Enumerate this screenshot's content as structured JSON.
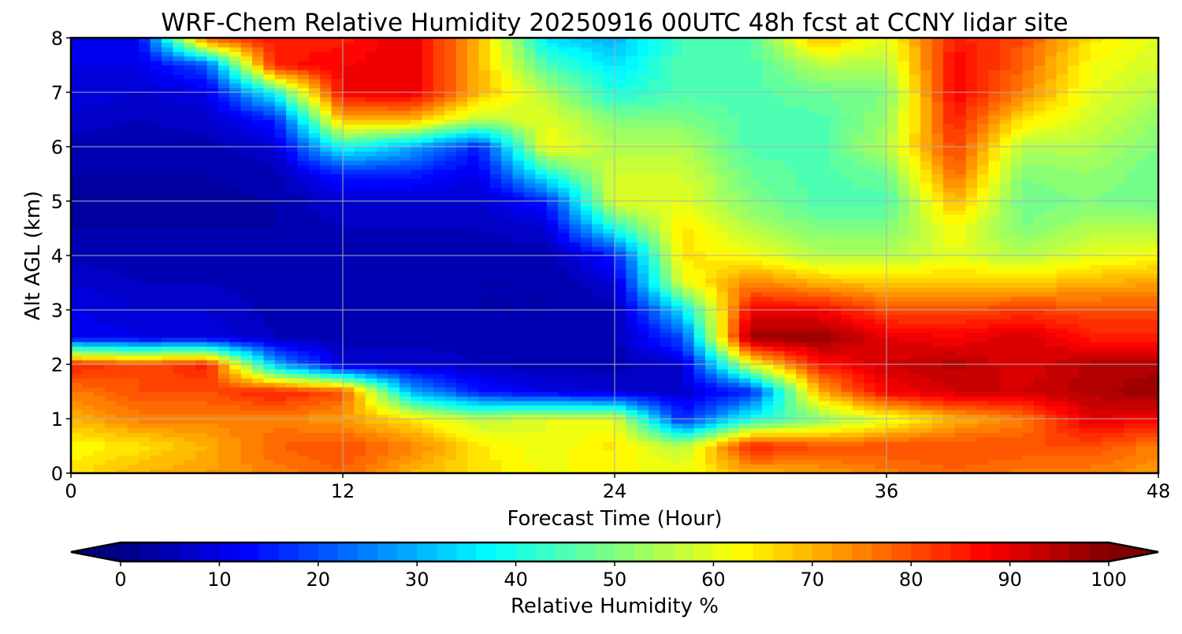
{
  "chart_data": {
    "type": "heatmap",
    "title": "WRF-Chem Relative Humidity 20250916 00UTC 48h fcst at CCNY lidar site",
    "xlabel": "Forecast Time (Hour)",
    "ylabel": "Alt AGL (km)",
    "xlim": [
      0,
      48
    ],
    "ylim": [
      0,
      8
    ],
    "xticks": [
      "0",
      "12",
      "24",
      "36",
      "48"
    ],
    "yticks": [
      "0",
      "1",
      "2",
      "3",
      "4",
      "5",
      "6",
      "7",
      "8"
    ],
    "grid": true,
    "colormap": "jet",
    "colorbar": {
      "label": "Relative Humidity %",
      "range": [
        0,
        100
      ],
      "level_step": 2,
      "ticks": [
        "0",
        "10",
        "20",
        "30",
        "40",
        "50",
        "60",
        "70",
        "80",
        "90",
        "100"
      ],
      "extend": "both",
      "placement": "bottom"
    },
    "x_hours": [
      0,
      3,
      6,
      9,
      12,
      15,
      18,
      21,
      24,
      27,
      30,
      33,
      36,
      39,
      42,
      45,
      48
    ],
    "y_km": [
      0,
      0.5,
      1,
      1.5,
      2,
      2.5,
      3,
      3.5,
      4,
      4.5,
      5,
      5.5,
      6,
      6.5,
      7,
      7.5,
      8
    ],
    "rh_by_hour": [
      [
        65,
        62,
        70,
        75,
        85,
        12,
        10,
        8,
        5,
        4,
        3,
        4,
        5,
        7,
        10,
        10,
        12
      ],
      [
        70,
        65,
        75,
        80,
        80,
        10,
        8,
        6,
        5,
        4,
        3,
        4,
        5,
        6,
        8,
        10,
        12
      ],
      [
        72,
        70,
        75,
        80,
        85,
        10,
        8,
        6,
        5,
        4,
        3,
        4,
        5,
        7,
        10,
        20,
        80
      ],
      [
        75,
        78,
        75,
        85,
        30,
        6,
        5,
        5,
        4,
        4,
        4,
        5,
        8,
        15,
        40,
        85,
        85
      ],
      [
        78,
        80,
        72,
        80,
        8,
        5,
        5,
        5,
        5,
        6,
        8,
        15,
        40,
        70,
        88,
        88,
        85
      ],
      [
        70,
        75,
        65,
        30,
        8,
        5,
        5,
        5,
        5,
        6,
        8,
        15,
        30,
        70,
        90,
        90,
        90
      ],
      [
        65,
        65,
        55,
        15,
        6,
        5,
        4,
        4,
        5,
        6,
        8,
        10,
        15,
        55,
        70,
        70,
        70
      ],
      [
        62,
        60,
        60,
        10,
        5,
        5,
        4,
        4,
        4,
        8,
        15,
        40,
        62,
        60,
        55,
        45,
        35
      ],
      [
        62,
        65,
        60,
        8,
        5,
        5,
        5,
        8,
        15,
        40,
        60,
        58,
        55,
        50,
        40,
        35,
        30
      ],
      [
        62,
        55,
        15,
        8,
        8,
        20,
        35,
        60,
        65,
        65,
        60,
        58,
        55,
        50,
        45,
        45,
        45
      ],
      [
        70,
        85,
        40,
        15,
        60,
        98,
        88,
        75,
        62,
        55,
        50,
        48,
        45,
        45,
        45,
        45,
        45
      ],
      [
        72,
        80,
        50,
        70,
        85,
        98,
        88,
        70,
        55,
        50,
        45,
        45,
        45,
        45,
        48,
        55,
        70
      ],
      [
        75,
        80,
        60,
        88,
        92,
        90,
        80,
        68,
        55,
        50,
        45,
        48,
        55,
        52,
        50,
        55,
        60
      ],
      [
        78,
        80,
        70,
        92,
        95,
        88,
        80,
        68,
        60,
        62,
        70,
        78,
        82,
        85,
        88,
        88,
        85
      ],
      [
        75,
        80,
        75,
        92,
        90,
        92,
        82,
        68,
        55,
        50,
        48,
        50,
        55,
        65,
        75,
        78,
        80
      ],
      [
        75,
        80,
        90,
        95,
        95,
        85,
        80,
        70,
        60,
        55,
        50,
        52,
        55,
        58,
        60,
        62,
        65
      ],
      [
        72,
        75,
        88,
        98,
        95,
        85,
        80,
        72,
        62,
        55,
        48,
        48,
        50,
        52,
        55,
        58,
        60
      ]
    ]
  }
}
